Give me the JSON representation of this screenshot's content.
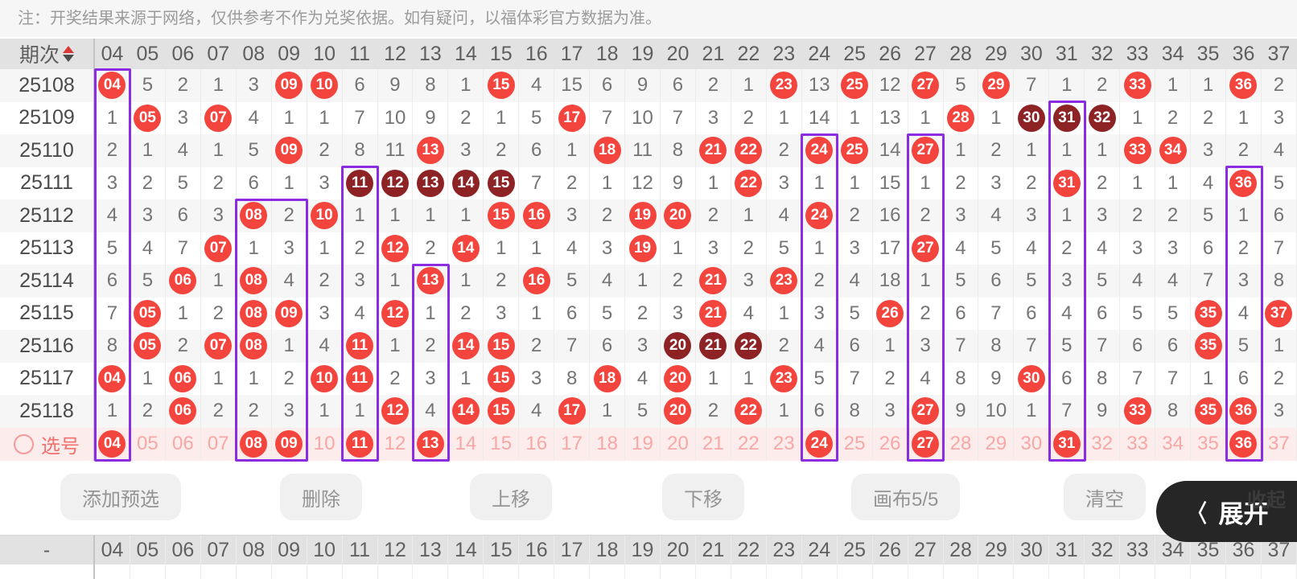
{
  "note": "注：开奖结果来源于网络，仅供参考不作为兑奖依据。如有疑问，以福体彩官方数据为准。",
  "colors": {
    "hit_red": "#f3453e",
    "repeat_dark_red": "#8e2326",
    "highlight_purple": "#8b2be2",
    "selection_row_pink": "#fdecec",
    "header_gray": "#e2e2e2"
  },
  "table": {
    "period_header": "期次",
    "columns": [
      "04",
      "05",
      "06",
      "07",
      "08",
      "09",
      "10",
      "11",
      "12",
      "13",
      "14",
      "15",
      "16",
      "17",
      "18",
      "19",
      "20",
      "21",
      "22",
      "23",
      "24",
      "25",
      "26",
      "27",
      "28",
      "29",
      "30",
      "31",
      "32",
      "33",
      "34",
      "35",
      "36",
      "37"
    ],
    "rows": [
      {
        "period": "25108",
        "cells": [
          "R04",
          "5",
          "2",
          "1",
          "3",
          "R09",
          "R10",
          "6",
          "9",
          "8",
          "1",
          "R15",
          "4",
          "15",
          "6",
          "9",
          "6",
          "2",
          "1",
          "R23",
          "13",
          "R25",
          "12",
          "R27",
          "5",
          "R29",
          "7",
          "1",
          "2",
          "R33",
          "1",
          "1",
          "R36",
          "2"
        ]
      },
      {
        "period": "25109",
        "cells": [
          "1",
          "R05",
          "3",
          "R07",
          "4",
          "1",
          "1",
          "7",
          "10",
          "9",
          "2",
          "1",
          "5",
          "R17",
          "7",
          "10",
          "7",
          "3",
          "2",
          "1",
          "14",
          "1",
          "13",
          "1",
          "R28",
          "1",
          "D30",
          "D31",
          "D32",
          "1",
          "2",
          "2",
          "1",
          "3"
        ]
      },
      {
        "period": "25110",
        "cells": [
          "2",
          "1",
          "4",
          "1",
          "5",
          "R09",
          "2",
          "8",
          "11",
          "R13",
          "3",
          "2",
          "6",
          "1",
          "R18",
          "11",
          "8",
          "R21",
          "R22",
          "2",
          "R24",
          "R25",
          "14",
          "R27",
          "1",
          "2",
          "1",
          "1",
          "1",
          "R33",
          "R34",
          "3",
          "2",
          "4"
        ]
      },
      {
        "period": "25111",
        "cells": [
          "3",
          "2",
          "5",
          "2",
          "6",
          "1",
          "3",
          "D11",
          "D12",
          "D13",
          "D14",
          "D15",
          "7",
          "2",
          "1",
          "12",
          "9",
          "1",
          "R22",
          "3",
          "1",
          "1",
          "15",
          "1",
          "2",
          "3",
          "2",
          "R31",
          "2",
          "1",
          "1",
          "4",
          "R36",
          "5"
        ]
      },
      {
        "period": "25112",
        "cells": [
          "4",
          "3",
          "6",
          "3",
          "R08",
          "2",
          "R10",
          "1",
          "1",
          "1",
          "1",
          "R15",
          "R16",
          "3",
          "2",
          "R19",
          "R20",
          "2",
          "1",
          "4",
          "R24",
          "2",
          "16",
          "2",
          "3",
          "4",
          "3",
          "1",
          "3",
          "2",
          "2",
          "5",
          "1",
          "6"
        ]
      },
      {
        "period": "25113",
        "cells": [
          "5",
          "4",
          "7",
          "R07",
          "1",
          "3",
          "1",
          "2",
          "R12",
          "2",
          "R14",
          "1",
          "1",
          "4",
          "3",
          "R19",
          "1",
          "3",
          "2",
          "5",
          "1",
          "3",
          "17",
          "R27",
          "4",
          "5",
          "4",
          "2",
          "4",
          "3",
          "3",
          "6",
          "2",
          "7"
        ]
      },
      {
        "period": "25114",
        "cells": [
          "6",
          "5",
          "R06",
          "1",
          "R08",
          "4",
          "2",
          "3",
          "1",
          "R13",
          "1",
          "2",
          "R16",
          "5",
          "4",
          "1",
          "2",
          "R21",
          "3",
          "R23",
          "2",
          "4",
          "18",
          "1",
          "5",
          "6",
          "5",
          "3",
          "5",
          "4",
          "4",
          "7",
          "3",
          "8"
        ]
      },
      {
        "period": "25115",
        "cells": [
          "7",
          "R05",
          "1",
          "2",
          "R08",
          "R09",
          "3",
          "4",
          "R12",
          "1",
          "2",
          "3",
          "1",
          "6",
          "5",
          "2",
          "3",
          "R21",
          "4",
          "1",
          "3",
          "5",
          "R26",
          "2",
          "6",
          "7",
          "6",
          "4",
          "6",
          "5",
          "5",
          "R35",
          "4",
          "R37"
        ]
      },
      {
        "period": "25116",
        "cells": [
          "8",
          "R05",
          "2",
          "R07",
          "R08",
          "1",
          "4",
          "R11",
          "1",
          "2",
          "R14",
          "R15",
          "2",
          "7",
          "6",
          "3",
          "D20",
          "D21",
          "D22",
          "2",
          "4",
          "6",
          "1",
          "3",
          "7",
          "8",
          "7",
          "5",
          "7",
          "6",
          "6",
          "R35",
          "5",
          "1"
        ]
      },
      {
        "period": "25117",
        "cells": [
          "R04",
          "1",
          "R06",
          "1",
          "1",
          "2",
          "R10",
          "R11",
          "2",
          "3",
          "1",
          "R15",
          "3",
          "8",
          "R18",
          "4",
          "R20",
          "1",
          "1",
          "R23",
          "5",
          "7",
          "2",
          "4",
          "8",
          "9",
          "R30",
          "6",
          "8",
          "7",
          "7",
          "1",
          "6",
          "2"
        ]
      },
      {
        "period": "25118",
        "cells": [
          "1",
          "2",
          "R06",
          "2",
          "2",
          "3",
          "1",
          "1",
          "R12",
          "4",
          "R14",
          "R15",
          "4",
          "R17",
          "1",
          "5",
          "R20",
          "2",
          "R22",
          "1",
          "6",
          "8",
          "3",
          "R27",
          "9",
          "10",
          "1",
          "7",
          "9",
          "R33",
          "8",
          "R35",
          "R36",
          "3"
        ]
      }
    ],
    "selection_row": {
      "label": "选号",
      "cells": [
        "R04",
        "05",
        "06",
        "07",
        "R08",
        "R09",
        "10",
        "R11",
        "12",
        "R13",
        "14",
        "15",
        "16",
        "17",
        "18",
        "19",
        "20",
        "21",
        "22",
        "23",
        "R24",
        "25",
        "26",
        "R27",
        "28",
        "29",
        "30",
        "R31",
        "32",
        "33",
        "34",
        "35",
        "R36",
        "37"
      ]
    }
  },
  "highlight_boxes": [
    {
      "col": "04",
      "span": 1,
      "from_period": "25108"
    },
    {
      "col": "08",
      "span": 2,
      "from_period": "25112"
    },
    {
      "col": "11",
      "span": 1,
      "from_period": "25111"
    },
    {
      "col": "13",
      "span": 1,
      "from_period": "25114"
    },
    {
      "col": "24",
      "span": 1,
      "from_period": "25110"
    },
    {
      "col": "27",
      "span": 1,
      "from_period": "25110"
    },
    {
      "col": "31",
      "span": 1,
      "from_period": "25109"
    },
    {
      "col": "36",
      "span": 1,
      "from_period": "25111"
    }
  ],
  "toolbar": {
    "buttons": [
      {
        "id": "add-preselect",
        "label": "添加预选"
      },
      {
        "id": "delete",
        "label": "删除"
      },
      {
        "id": "move-up",
        "label": "上移"
      },
      {
        "id": "move-down",
        "label": "下移"
      },
      {
        "id": "canvas-count",
        "label": "画布5/5"
      },
      {
        "id": "clear",
        "label": "清空"
      }
    ],
    "expand_label": "展开",
    "collapse_label": "收起",
    "expand_chevron": "〈"
  },
  "bottom_header": {
    "first_cell": "-"
  }
}
